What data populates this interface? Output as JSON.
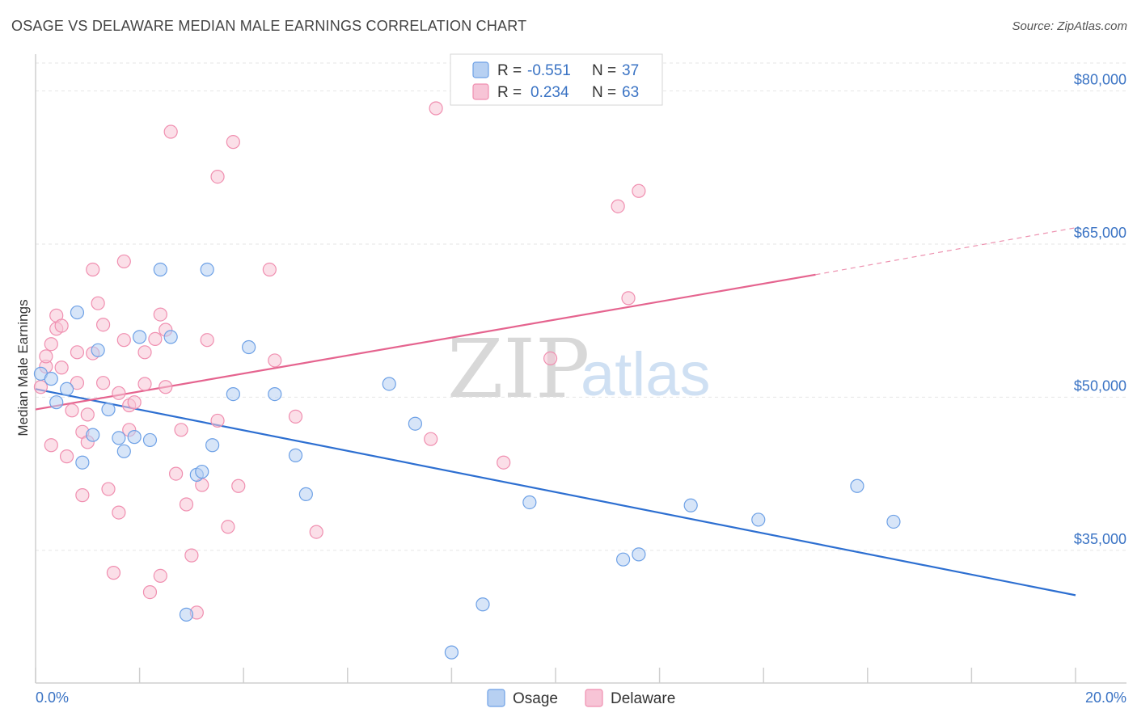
{
  "title": "OSAGE VS DELAWARE MEDIAN MALE EARNINGS CORRELATION CHART",
  "source": "Source: ZipAtlas.com",
  "watermark": {
    "zip": "ZIP",
    "atlas": "atlas"
  },
  "colors": {
    "osage": "#6ea1e6",
    "osage_fill": "#b7d0f2",
    "osage_line": "#2d6fd1",
    "delaware": "#f08fb0",
    "delaware_fill": "#f7c4d6",
    "delaware_line": "#e5648f",
    "axis_text": "#3a73c4"
  },
  "legend": {
    "osage": {
      "r_label": "R =",
      "r_value": "-0.551",
      "n_label": "N =",
      "n_value": "37"
    },
    "delaware": {
      "r_label": "R =",
      "r_value": "0.234",
      "n_label": "N =",
      "n_value": "63"
    }
  },
  "chart_data": {
    "type": "scatter",
    "title": "OSAGE VS DELAWARE MEDIAN MALE EARNINGS CORRELATION CHART",
    "xlabel": "",
    "ylabel": "Median Male Earnings",
    "xlim": [
      0,
      20
    ],
    "ylim": [
      22000,
      84000
    ],
    "x_tick_labels": [
      "0.0%",
      "20.0%"
    ],
    "y_ticks": [
      35000,
      50000,
      65000,
      80000
    ],
    "y_tick_labels": [
      "$35,000",
      "$50,000",
      "$65,000",
      "$80,000"
    ],
    "grid": true,
    "legend_position": "top-center",
    "series": [
      {
        "name": "Osage",
        "r": -0.551,
        "n": 37,
        "trend": {
          "x0": 0,
          "y0": 50800,
          "x1": 20,
          "y1": 30600
        },
        "points": [
          [
            0.1,
            52300
          ],
          [
            0.4,
            49500
          ],
          [
            0.6,
            50800
          ],
          [
            0.8,
            58300
          ],
          [
            0.9,
            43600
          ],
          [
            1.1,
            46300
          ],
          [
            1.2,
            54600
          ],
          [
            1.4,
            48800
          ],
          [
            1.6,
            46000
          ],
          [
            1.7,
            44700
          ],
          [
            1.9,
            46100
          ],
          [
            2.0,
            55900
          ],
          [
            2.2,
            45800
          ],
          [
            2.4,
            62500
          ],
          [
            2.6,
            55900
          ],
          [
            2.9,
            28700
          ],
          [
            3.1,
            42400
          ],
          [
            3.2,
            42700
          ],
          [
            3.3,
            62500
          ],
          [
            3.4,
            45300
          ],
          [
            3.8,
            50300
          ],
          [
            4.1,
            54900
          ],
          [
            4.6,
            50300
          ],
          [
            5.0,
            44300
          ],
          [
            5.2,
            40500
          ],
          [
            6.8,
            51300
          ],
          [
            7.3,
            47400
          ],
          [
            8.0,
            25000
          ],
          [
            8.6,
            29700
          ],
          [
            9.5,
            39700
          ],
          [
            11.3,
            34100
          ],
          [
            11.6,
            34600
          ],
          [
            12.6,
            39400
          ],
          [
            13.9,
            38000
          ],
          [
            15.8,
            41300
          ],
          [
            16.5,
            37800
          ],
          [
            0.3,
            51800
          ]
        ]
      },
      {
        "name": "Delaware",
        "r": 0.234,
        "n": 63,
        "trend": {
          "x0": 0,
          "y0": 48800,
          "x1": 15,
          "y1": 62000,
          "dash_x1": 20,
          "dash_y1": 66600
        },
        "points": [
          [
            0.1,
            51000
          ],
          [
            0.2,
            53000
          ],
          [
            0.2,
            54000
          ],
          [
            0.3,
            55200
          ],
          [
            0.3,
            45300
          ],
          [
            0.4,
            56700
          ],
          [
            0.4,
            58000
          ],
          [
            0.5,
            52900
          ],
          [
            0.5,
            57000
          ],
          [
            0.6,
            44200
          ],
          [
            0.7,
            48700
          ],
          [
            0.8,
            54400
          ],
          [
            0.8,
            51400
          ],
          [
            0.9,
            46600
          ],
          [
            0.9,
            40400
          ],
          [
            1.0,
            48300
          ],
          [
            1.0,
            45600
          ],
          [
            1.1,
            54300
          ],
          [
            1.1,
            62500
          ],
          [
            1.2,
            59200
          ],
          [
            1.3,
            57100
          ],
          [
            1.3,
            51400
          ],
          [
            1.4,
            41000
          ],
          [
            1.5,
            32800
          ],
          [
            1.6,
            50400
          ],
          [
            1.6,
            38700
          ],
          [
            1.7,
            55600
          ],
          [
            1.7,
            63300
          ],
          [
            1.8,
            49200
          ],
          [
            1.8,
            46800
          ],
          [
            1.9,
            49500
          ],
          [
            2.1,
            51300
          ],
          [
            2.1,
            54400
          ],
          [
            2.2,
            30900
          ],
          [
            2.3,
            55700
          ],
          [
            2.4,
            58100
          ],
          [
            2.4,
            32500
          ],
          [
            2.5,
            51000
          ],
          [
            2.5,
            56600
          ],
          [
            2.6,
            76000
          ],
          [
            2.7,
            42500
          ],
          [
            2.8,
            46800
          ],
          [
            2.9,
            39500
          ],
          [
            3.0,
            34500
          ],
          [
            3.1,
            28900
          ],
          [
            3.2,
            41400
          ],
          [
            3.3,
            55600
          ],
          [
            3.5,
            71600
          ],
          [
            3.5,
            47700
          ],
          [
            3.7,
            37300
          ],
          [
            3.8,
            75000
          ],
          [
            3.9,
            41300
          ],
          [
            4.5,
            62500
          ],
          [
            4.6,
            53600
          ],
          [
            5.0,
            48100
          ],
          [
            5.4,
            36800
          ],
          [
            7.6,
            45900
          ],
          [
            7.7,
            78300
          ],
          [
            9.0,
            43600
          ],
          [
            9.9,
            53800
          ],
          [
            11.2,
            68700
          ],
          [
            11.4,
            59700
          ],
          [
            11.6,
            70200
          ]
        ]
      }
    ]
  },
  "bottom_legend": {
    "osage": "Osage",
    "delaware": "Delaware"
  }
}
